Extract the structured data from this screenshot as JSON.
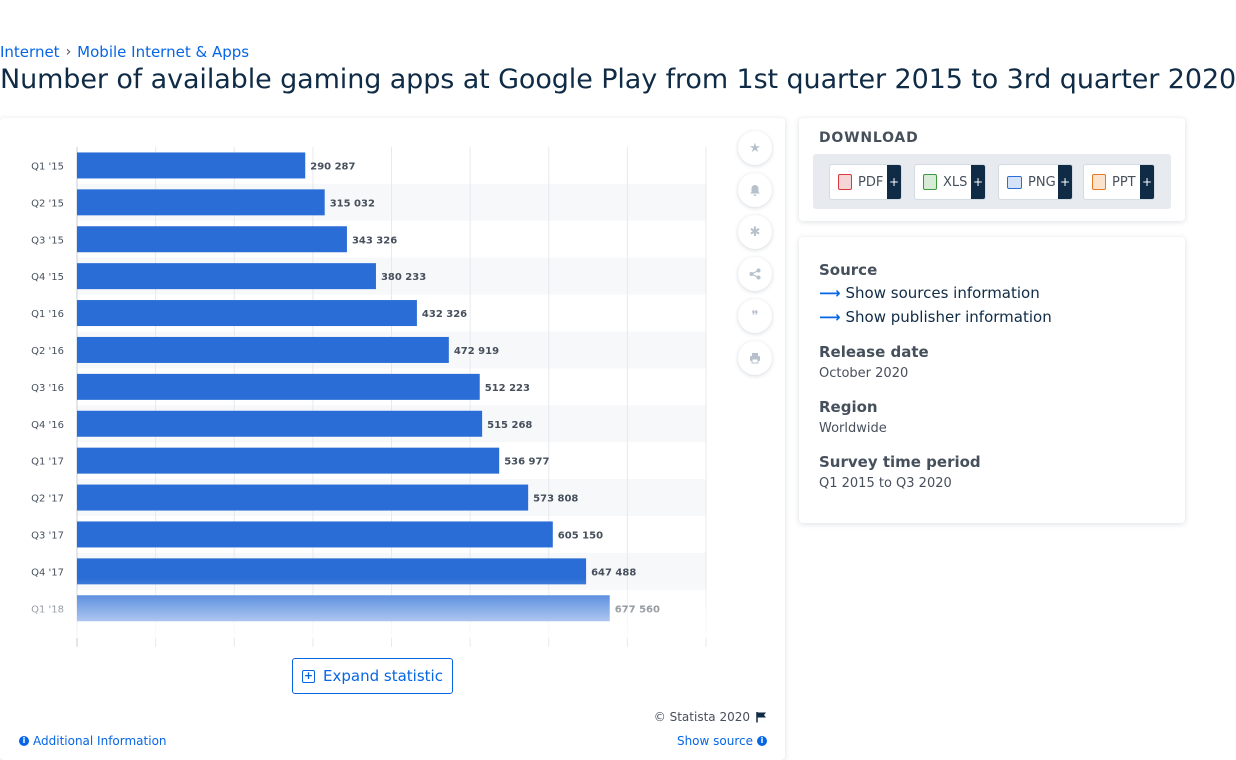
{
  "breadcrumb": {
    "items": [
      "Internet",
      "Mobile Internet & Apps"
    ],
    "separator": "›"
  },
  "page_title": "Number of available gaming apps at Google Play from 1st quarter 2015 to 3rd quarter 2020",
  "chart_data": {
    "type": "bar",
    "orientation": "horizontal",
    "categories": [
      "Q1 '15",
      "Q2 '15",
      "Q3 '15",
      "Q4 '15",
      "Q1 '16",
      "Q2 '16",
      "Q3 '16",
      "Q4 '16",
      "Q1 '17",
      "Q2 '17",
      "Q3 '17",
      "Q4 '17",
      "Q1 '18"
    ],
    "values": [
      290287,
      315032,
      343326,
      380233,
      432326,
      472919,
      512223,
      515268,
      536977,
      573808,
      605150,
      647488,
      677560
    ],
    "value_labels": [
      "290 287",
      "315 032",
      "343 326",
      "380 233",
      "432 326",
      "472 919",
      "512 223",
      "515 268",
      "536 977",
      "573 808",
      "605 150",
      "647 488",
      "677 560"
    ],
    "xlim": [
      0,
      800000
    ],
    "grid": true,
    "bar_color": "#2b6dd6",
    "legend": "none"
  },
  "tools": [
    "star-icon",
    "bell-icon",
    "gear-icon",
    "share-icon",
    "quote-icon",
    "print-icon"
  ],
  "expand_label": "Expand statistic",
  "copyright": "© Statista 2020",
  "additional_info": "Additional Information",
  "show_source": "Show source",
  "download": {
    "title": "DOWNLOAD",
    "formats": [
      {
        "label": "PDF",
        "color": "#d9363e"
      },
      {
        "label": "XLS",
        "color": "#3c9a3c"
      },
      {
        "label": "PNG",
        "color": "#2b6dd6"
      },
      {
        "label": "PPT",
        "color": "#e07a24"
      }
    ],
    "plus": "+"
  },
  "info": {
    "source_label": "Source",
    "show_sources": "Show sources information",
    "show_publisher": "Show publisher information",
    "release_label": "Release date",
    "release_value": "October 2020",
    "region_label": "Region",
    "region_value": "Worldwide",
    "period_label": "Survey time period",
    "period_value": "Q1 2015 to Q3 2020"
  }
}
